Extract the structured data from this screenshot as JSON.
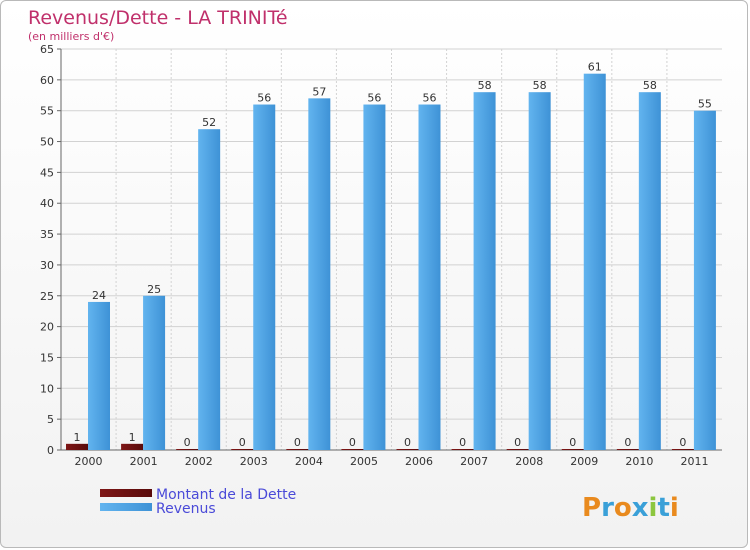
{
  "chart_data": {
    "type": "bar",
    "title": "Revenus/Dette - LA TRINITé",
    "subtitle": "(en milliers d'€)",
    "categories": [
      "2000",
      "2001",
      "2002",
      "2003",
      "2004",
      "2005",
      "2006",
      "2007",
      "2008",
      "2009",
      "2010",
      "2011"
    ],
    "series": [
      {
        "name": "Montant de la Dette",
        "color": "#6b0d0d",
        "values": [
          1,
          1,
          0,
          0,
          0,
          0,
          0,
          0,
          0,
          0,
          0,
          0
        ]
      },
      {
        "name": "Revenus",
        "color": "#4ea3e6",
        "values": [
          24,
          25,
          52,
          56,
          57,
          56,
          56,
          58,
          58,
          61,
          58,
          55
        ]
      }
    ],
    "ylim": [
      0,
      65
    ],
    "yticks": [
      0,
      5,
      10,
      15,
      20,
      25,
      30,
      35,
      40,
      45,
      50,
      55,
      60,
      65
    ],
    "grid": true,
    "legend": "bottom-left",
    "xlabel": "",
    "ylabel": ""
  },
  "logo": {
    "text": "Proxiti"
  },
  "colors": {
    "title": "#c0306b",
    "legend_text": "#4a4ad8",
    "grid": "#d2d2d2",
    "axis": "#666666"
  }
}
